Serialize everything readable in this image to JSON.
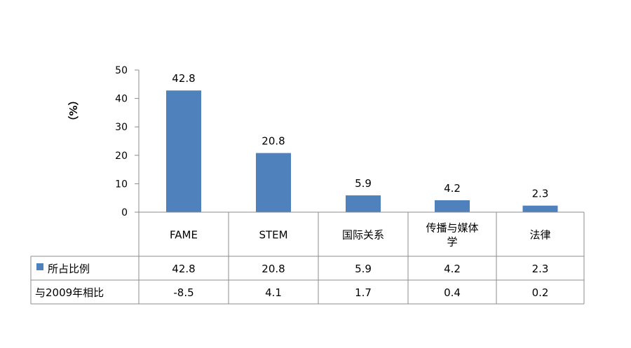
{
  "chart_data": {
    "type": "bar",
    "ylabel": "（%）",
    "ylim": [
      0,
      50
    ],
    "yticks": [
      0,
      10,
      20,
      30,
      40,
      50
    ],
    "categories": [
      "FAME",
      "STEM",
      "国际关系",
      "传播与媒体学",
      "法律"
    ],
    "series": [
      {
        "name": "所占比例",
        "values": [
          42.8,
          20.8,
          5.9,
          4.2,
          2.3
        ],
        "color": "#4f81bd"
      }
    ],
    "data_labels": [
      "42.8",
      "20.8",
      "5.9",
      "4.2",
      "2.3"
    ],
    "table": {
      "rows": [
        {
          "name": "所占比例",
          "legend_color": "#4f81bd",
          "values": [
            "42.8",
            "20.8",
            "5.9",
            "4.2",
            "2.3"
          ]
        },
        {
          "name": "与2009年相比",
          "values": [
            "-8.5",
            "4.1",
            "1.7",
            "0.4",
            "0.2"
          ]
        }
      ]
    }
  }
}
